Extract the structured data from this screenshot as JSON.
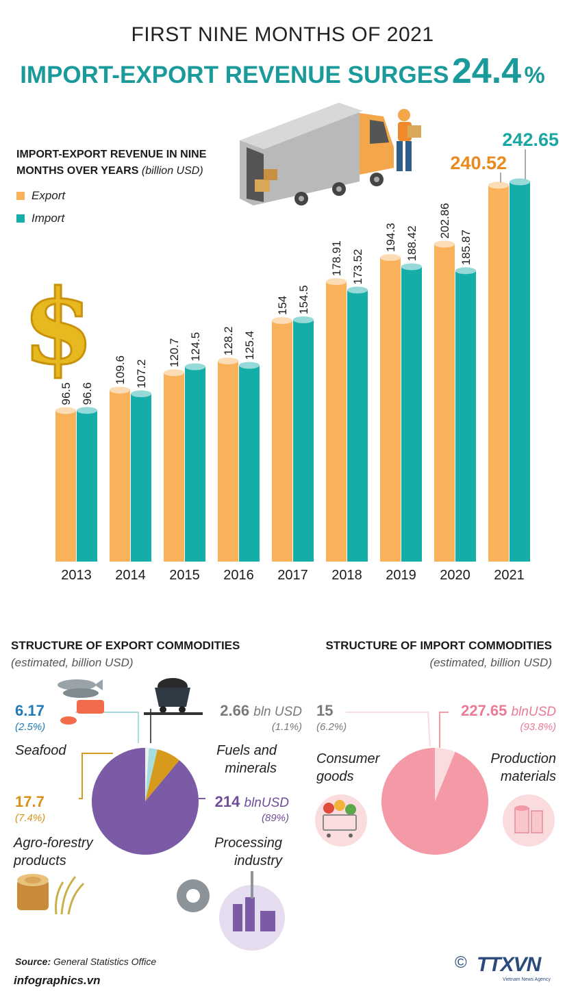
{
  "header": {
    "subtitle": "FIRST NINE MONTHS OF 2021",
    "title": "IMPORT-EXPORT REVENUE SURGES",
    "highlight_value": "24.4",
    "highlight_unit": "%"
  },
  "chart_data": [
    {
      "type": "bar",
      "title_line1": "IMPORT-EXPORT REVENUE IN NINE",
      "title_line2": "MONTHS OVER YEARS",
      "unit": "(billion USD)",
      "categories": [
        "2013",
        "2014",
        "2015",
        "2016",
        "2017",
        "2018",
        "2019",
        "2020",
        "2021"
      ],
      "series": [
        {
          "name": "Export",
          "color": "#f9b25a",
          "values": [
            96.5,
            109.6,
            120.7,
            128.2,
            154,
            178.91,
            194.3,
            202.86,
            240.52
          ]
        },
        {
          "name": "Import",
          "color": "#14ada8",
          "values": [
            96.6,
            107.2,
            124.5,
            125.4,
            154.5,
            173.52,
            188.42,
            185.87,
            242.65
          ]
        }
      ],
      "labels": {
        "Export": [
          "96.5",
          "109.6",
          "120.7",
          "128.2",
          "154",
          "178.91",
          "194.3",
          "202.86",
          "240.52"
        ],
        "Import": [
          "96.6",
          "107.2",
          "124.5",
          "125.4",
          "154.5",
          "173.52",
          "188.42",
          "185.87",
          "242.65"
        ]
      }
    },
    {
      "type": "pie",
      "title": "STRUCTURE OF EXPORT COMMODITIES",
      "subtitle": "(estimated, billion USD)",
      "slices": [
        {
          "name": "Processing industry",
          "value": 214,
          "value_label": "214",
          "unit": "blnUSD",
          "pct": "(89%)",
          "color": "#7b5aa6"
        },
        {
          "name": "Agro-forestry products",
          "value": 17.7,
          "value_label": "17.7",
          "unit": "",
          "pct": "(7.4%)",
          "color": "#d89a1c"
        },
        {
          "name": "Seafood",
          "value": 6.17,
          "value_label": "6.17",
          "unit": "",
          "pct": "(2.5%)",
          "color": "#a8dde0"
        },
        {
          "name": "Fuels and minerals",
          "value": 2.66,
          "value_label": "2.66",
          "unit": "bln USD",
          "pct": "(1.1%)",
          "color": "#eef0f0"
        }
      ]
    },
    {
      "type": "pie",
      "title": "STRUCTURE OF IMPORT COMMODITIES",
      "subtitle": "(estimated, billion USD)",
      "slices": [
        {
          "name": "Production materials",
          "value": 227.65,
          "value_label": "227.65",
          "unit": "blnUSD",
          "pct": "(93.8%)",
          "color": "#f39aa6"
        },
        {
          "name": "Consumer goods",
          "value": 15,
          "value_label": "15",
          "unit": "",
          "pct": "(6.2%)",
          "color": "#fbdcde"
        }
      ]
    }
  ],
  "export_labels": {
    "seafood": {
      "value": "6.17",
      "pct": "(2.5%)",
      "name": "Seafood"
    },
    "fuels": {
      "value": "2.66",
      "unit": "bln USD",
      "pct": "(1.1%)",
      "name_line1": "Fuels and",
      "name_line2": "minerals"
    },
    "agro": {
      "value": "17.7",
      "pct": "(7.4%)",
      "name_line1": "Agro-forestry",
      "name_line2": "products"
    },
    "processing": {
      "value": "214",
      "unit": "blnUSD",
      "pct": "(89%)",
      "name_line1": "Processing",
      "name_line2": "industry"
    }
  },
  "import_labels": {
    "consumer": {
      "value": "15",
      "pct": "(6.2%)",
      "name_line1": "Consumer",
      "name_line2": "goods"
    },
    "production": {
      "value": "227.65",
      "unit": "blnUSD",
      "pct": "(93.8%)",
      "name_line1": "Production",
      "name_line2": "materials"
    }
  },
  "colors": {
    "export": "#f9b25a",
    "import": "#14ada8",
    "teal_title": "#1a9a9a",
    "orange_value": "#ea8a1e",
    "purple_value": "#6f4d9a",
    "pink_value": "#ea7a96",
    "blue_value": "#1f7ab8",
    "gray_value": "#7a7a7a"
  },
  "footer": {
    "source_label": "Source:",
    "source_text": "General Statistics Office",
    "site": "infographics.vn",
    "copyright": "©",
    "logo_text": "TTXVN",
    "logo_sub": "Vietnam News Agency"
  },
  "icons": [
    "dollar-icon",
    "truck-icon",
    "worker-icon",
    "fish-icon",
    "coal-cart-icon",
    "wood-icon",
    "rice-icon",
    "gear-icon",
    "factory-icon",
    "shopping-cart-icon",
    "fabric-roll-icon"
  ]
}
